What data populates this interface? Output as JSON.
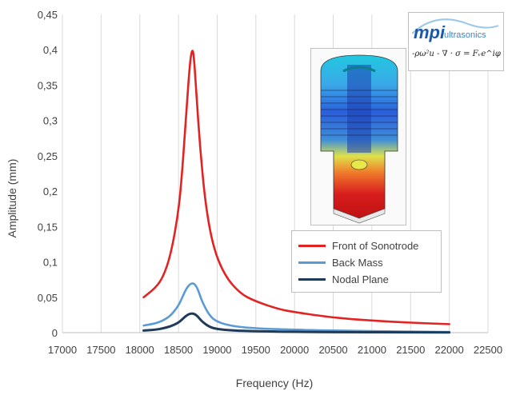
{
  "chart_data": {
    "type": "line",
    "title": "",
    "xlabel": "Frequency (Hz)",
    "ylabel": "Amplitude (mm)",
    "xlim": [
      17000,
      22500
    ],
    "ylim": [
      0,
      0.45
    ],
    "grid": "vertical",
    "legend_position": "right-middle",
    "x_ticks": [
      "17000",
      "17500",
      "18000",
      "18500",
      "19000",
      "19500",
      "20000",
      "20500",
      "21000",
      "21500",
      "22000",
      "22500"
    ],
    "y_ticks": [
      "0",
      "0,05",
      "0,1",
      "0,15",
      "0,2",
      "0,25",
      "0,3",
      "0,35",
      "0,4",
      "0,45"
    ],
    "series": [
      {
        "name": "Front of Sonotrode",
        "color": "#e32222",
        "x": [
          18050,
          18200,
          18300,
          18400,
          18500,
          18550,
          18600,
          18650,
          18680,
          18700,
          18730,
          18780,
          18850,
          18950,
          19100,
          19300,
          19500,
          19800,
          20000,
          20500,
          21000,
          21500,
          22000
        ],
        "y": [
          0.05,
          0.063,
          0.078,
          0.11,
          0.17,
          0.23,
          0.31,
          0.385,
          0.402,
          0.39,
          0.34,
          0.26,
          0.18,
          0.12,
          0.08,
          0.055,
          0.044,
          0.033,
          0.029,
          0.021,
          0.017,
          0.014,
          0.012
        ]
      },
      {
        "name": "Back Mass",
        "color": "#5b9bd5",
        "x": [
          18050,
          18200,
          18300,
          18400,
          18500,
          18550,
          18600,
          18650,
          18700,
          18750,
          18800,
          18900,
          19000,
          19200,
          19500,
          20000,
          21000,
          22000
        ],
        "y": [
          0.01,
          0.013,
          0.017,
          0.024,
          0.038,
          0.05,
          0.062,
          0.069,
          0.07,
          0.062,
          0.045,
          0.024,
          0.015,
          0.009,
          0.006,
          0.004,
          0.002,
          0.001
        ]
      },
      {
        "name": "Nodal Plane",
        "color": "#1f3b5a",
        "x": [
          18050,
          18200,
          18300,
          18400,
          18500,
          18550,
          18600,
          18650,
          18700,
          18750,
          18800,
          18900,
          19000,
          19200,
          19500,
          20000,
          21000,
          22000
        ],
        "y": [
          0.003,
          0.004,
          0.006,
          0.009,
          0.014,
          0.019,
          0.024,
          0.027,
          0.027,
          0.023,
          0.016,
          0.008,
          0.005,
          0.003,
          0.002,
          0.001,
          0.0005,
          0.0003
        ]
      }
    ]
  },
  "logo": {
    "brand_mark": "mpi",
    "brand_text": "ultrasonics"
  },
  "formula": "-ρω²u - ∇ · σ = Fᵥe^iφ"
}
